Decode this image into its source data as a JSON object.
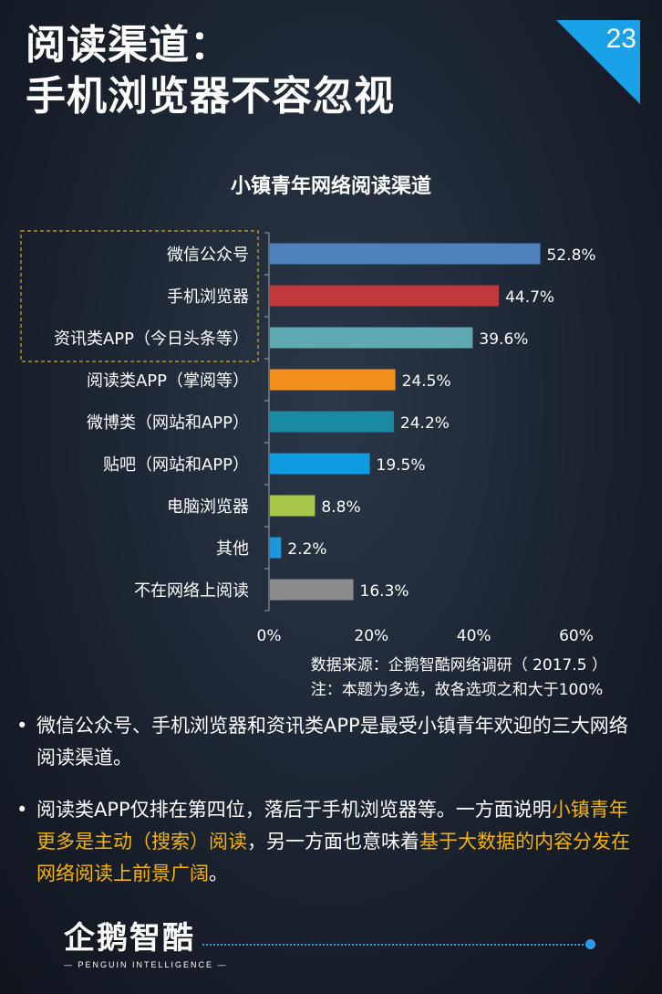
{
  "page": {
    "title_line1": "阅读渠道：",
    "title_line2": "手机浏览器不容忽视",
    "page_number": "23"
  },
  "chart_data": {
    "type": "bar",
    "orientation": "horizontal",
    "title": "小镇青年网络阅读渠道",
    "categories": [
      "微信公众号",
      "手机浏览器",
      "资讯类APP（今日头条等）",
      "阅读类APP（掌阅等）",
      "微博类（网站和APP）",
      "贴吧（网站和APP）",
      "电脑浏览器",
      "其他",
      "不在网络上阅读"
    ],
    "values": [
      52.8,
      44.7,
      39.6,
      24.5,
      24.2,
      19.5,
      8.8,
      2.2,
      16.3
    ],
    "value_labels": [
      "52.8%",
      "44.7%",
      "39.6%",
      "24.5%",
      "24.2%",
      "19.5%",
      "8.8%",
      "2.2%",
      "16.3%"
    ],
    "colors": [
      "#4f81bd",
      "#c0393b",
      "#5fa9b0",
      "#f28f1e",
      "#1a8aa3",
      "#0e9be0",
      "#a8c64a",
      "#1e96dc",
      "#8c8c8c"
    ],
    "xlim": [
      0,
      60
    ],
    "xticks": [
      0,
      20,
      40,
      60
    ],
    "xtick_labels": [
      "0%",
      "20%",
      "40%",
      "60%"
    ],
    "grid": false,
    "highlight_box": "top-3 categories (dashed gold)"
  },
  "source": {
    "line1": "数据来源：企鹅智酷网络调研（  2017.5 ）",
    "line2": "注：本题为多选，故各选项之和大于100%"
  },
  "bullets": {
    "b1": "微信公众号、手机浏览器和资讯类APP是最受小镇青年欢迎的三大网络阅读渠道。",
    "b2_part1": "阅读类APP仅排在第四位，落后于手机浏览器等。一方面说明",
    "b2_highlight1": "小镇青年更多是主动（搜索）阅读",
    "b2_part2": "，另一方面也意味着",
    "b2_highlight2": "基于大数据的内容分发在网络阅读上前景广阔",
    "b2_part3": "。",
    "dot": "•"
  },
  "logo": {
    "main": "企鹅智酷",
    "sub": "— PENGUIN INTELLIGENCE —"
  },
  "colors": {
    "accent_blue": "#1aa0e6",
    "highlight": "#f5b400"
  }
}
